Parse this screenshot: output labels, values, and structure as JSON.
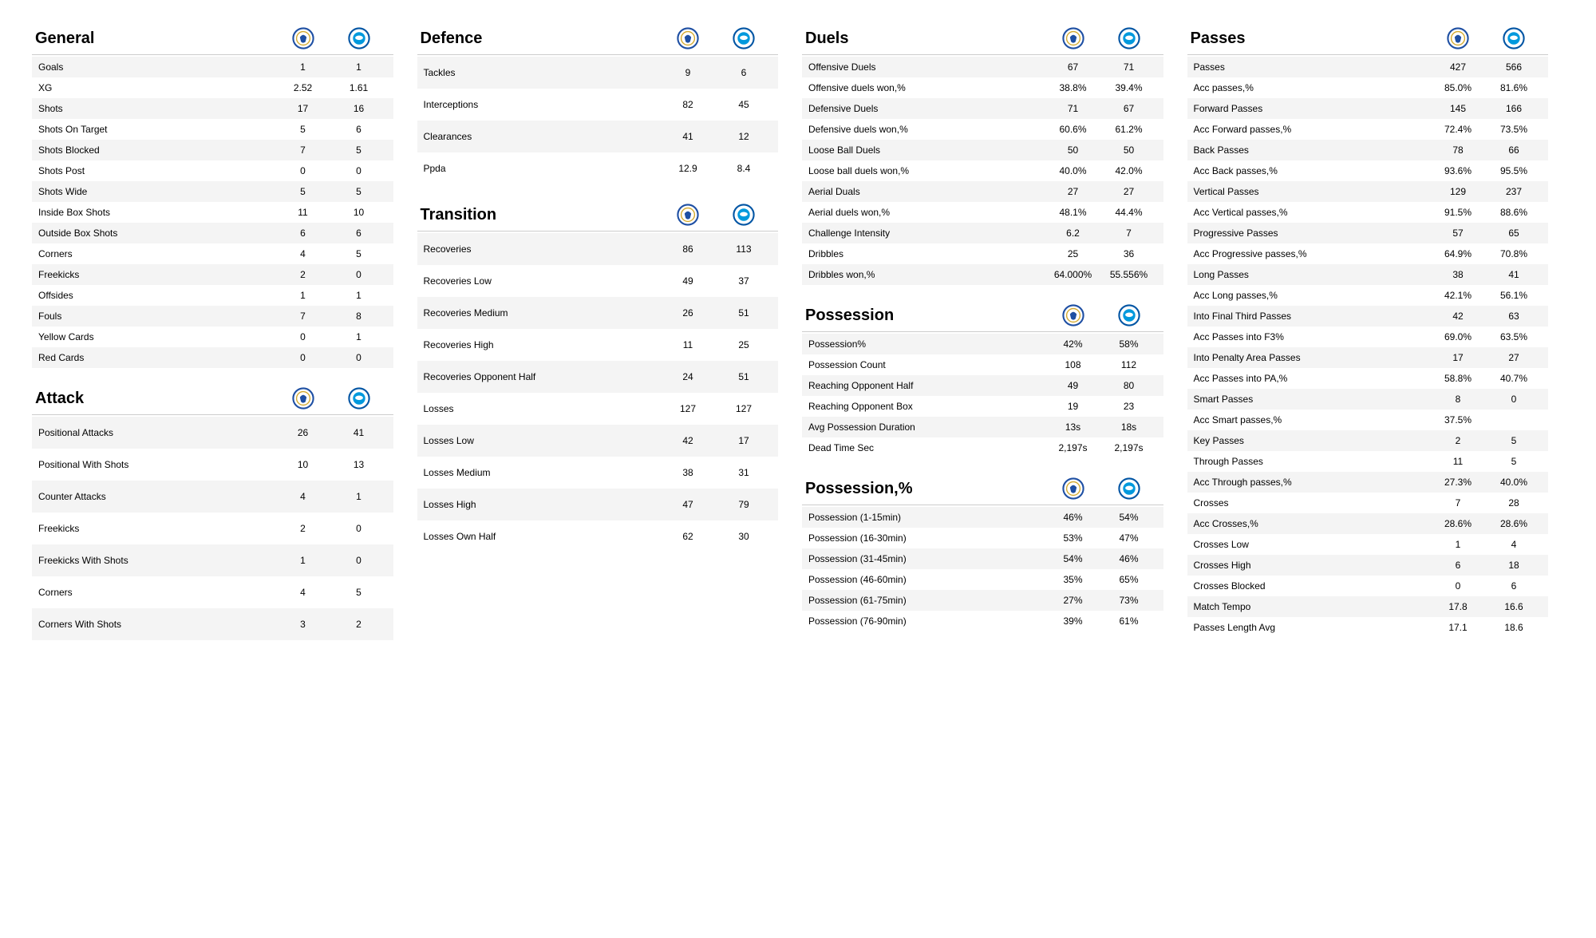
{
  "colors": {
    "row_alt": "#f4f4f4",
    "text": "#000000",
    "border": "#cccccc",
    "badge_a_bg": "#ffffff",
    "badge_a_ring": "#1e4fa3",
    "badge_a_accent": "#d4a92c",
    "badge_b_bg": "#ffffff",
    "badge_b_ring": "#0055a4",
    "badge_b_fill": "#0099dd"
  },
  "teams": {
    "a_name": "leicester-badge",
    "b_name": "brighton-badge"
  },
  "sections": {
    "general": {
      "title": "General",
      "rows": [
        {
          "label": "Goals",
          "a": "1",
          "b": "1"
        },
        {
          "label": "XG",
          "a": "2.52",
          "b": "1.61"
        },
        {
          "label": "Shots",
          "a": "17",
          "b": "16"
        },
        {
          "label": "Shots On Target",
          "a": "5",
          "b": "6"
        },
        {
          "label": "Shots Blocked",
          "a": "7",
          "b": "5"
        },
        {
          "label": "Shots Post",
          "a": "0",
          "b": "0"
        },
        {
          "label": "Shots Wide",
          "a": "5",
          "b": "5"
        },
        {
          "label": "Inside Box Shots",
          "a": "11",
          "b": "10"
        },
        {
          "label": "Outside Box Shots",
          "a": "6",
          "b": "6"
        },
        {
          "label": "Corners",
          "a": "4",
          "b": "5"
        },
        {
          "label": "Freekicks",
          "a": "2",
          "b": "0"
        },
        {
          "label": "Offsides",
          "a": "1",
          "b": "1"
        },
        {
          "label": "Fouls",
          "a": "7",
          "b": "8"
        },
        {
          "label": "Yellow Cards",
          "a": "0",
          "b": "1"
        },
        {
          "label": "Red Cards",
          "a": "0",
          "b": "0"
        }
      ]
    },
    "attack": {
      "title": "Attack",
      "rows": [
        {
          "label": "Positional Attacks",
          "a": "26",
          "b": "41"
        },
        {
          "label": "Positional With Shots",
          "a": "10",
          "b": "13"
        },
        {
          "label": "Counter Attacks",
          "a": "4",
          "b": "1"
        },
        {
          "label": "Freekicks",
          "a": "2",
          "b": "0"
        },
        {
          "label": "Freekicks With Shots",
          "a": "1",
          "b": "0"
        },
        {
          "label": "Corners",
          "a": "4",
          "b": "5"
        },
        {
          "label": "Corners With Shots",
          "a": "3",
          "b": "2"
        }
      ]
    },
    "defence": {
      "title": "Defence",
      "rows": [
        {
          "label": "Tackles",
          "a": "9",
          "b": "6"
        },
        {
          "label": "Interceptions",
          "a": "82",
          "b": "45"
        },
        {
          "label": "Clearances",
          "a": "41",
          "b": "12"
        },
        {
          "label": "Ppda",
          "a": "12.9",
          "b": "8.4"
        }
      ]
    },
    "transition": {
      "title": "Transition",
      "rows": [
        {
          "label": "Recoveries",
          "a": "86",
          "b": "113"
        },
        {
          "label": "Recoveries Low",
          "a": "49",
          "b": "37"
        },
        {
          "label": "Recoveries Medium",
          "a": "26",
          "b": "51"
        },
        {
          "label": "Recoveries High",
          "a": "11",
          "b": "25"
        },
        {
          "label": "Recoveries Opponent Half",
          "a": "24",
          "b": "51"
        },
        {
          "label": "Losses",
          "a": "127",
          "b": "127"
        },
        {
          "label": "Losses Low",
          "a": "42",
          "b": "17"
        },
        {
          "label": "Losses Medium",
          "a": "38",
          "b": "31"
        },
        {
          "label": "Losses High",
          "a": "47",
          "b": "79"
        },
        {
          "label": "Losses Own Half",
          "a": "62",
          "b": "30"
        }
      ]
    },
    "duels": {
      "title": "Duels",
      "rows": [
        {
          "label": "Offensive Duels",
          "a": "67",
          "b": "71"
        },
        {
          "label": "Offensive duels won,%",
          "a": "38.8%",
          "b": "39.4%"
        },
        {
          "label": "Defensive Duels",
          "a": "71",
          "b": "67"
        },
        {
          "label": "Defensive duels won,%",
          "a": "60.6%",
          "b": "61.2%"
        },
        {
          "label": "Loose Ball Duels",
          "a": "50",
          "b": "50"
        },
        {
          "label": "Loose ball duels won,%",
          "a": "40.0%",
          "b": "42.0%"
        },
        {
          "label": "Aerial Duals",
          "a": "27",
          "b": "27"
        },
        {
          "label": "Aerial duels won,%",
          "a": "48.1%",
          "b": "44.4%"
        },
        {
          "label": "Challenge Intensity",
          "a": "6.2",
          "b": "7"
        },
        {
          "label": "Dribbles",
          "a": "25",
          "b": "36"
        },
        {
          "label": "Dribbles won,%",
          "a": "64.000%",
          "b": "55.556%"
        }
      ]
    },
    "possession": {
      "title": "Possession",
      "rows": [
        {
          "label": "Possession%",
          "a": "42%",
          "b": "58%"
        },
        {
          "label": "Possession Count",
          "a": "108",
          "b": "112"
        },
        {
          "label": "Reaching Opponent Half",
          "a": "49",
          "b": "80"
        },
        {
          "label": "Reaching Opponent Box",
          "a": "19",
          "b": "23"
        },
        {
          "label": "Avg Possession Duration",
          "a": "13s",
          "b": "18s"
        },
        {
          "label": "Dead Time Sec",
          "a": "2,197s",
          "b": "2,197s"
        }
      ]
    },
    "possession_pct": {
      "title": "Possession,%",
      "rows": [
        {
          "label": "Possession (1-15min)",
          "a": "46%",
          "b": "54%"
        },
        {
          "label": "Possession (16-30min)",
          "a": "53%",
          "b": "47%"
        },
        {
          "label": "Possession (31-45min)",
          "a": "54%",
          "b": "46%"
        },
        {
          "label": "Possession (46-60min)",
          "a": "35%",
          "b": "65%"
        },
        {
          "label": "Possession (61-75min)",
          "a": "27%",
          "b": "73%"
        },
        {
          "label": "Possession (76-90min)",
          "a": "39%",
          "b": "61%"
        }
      ]
    },
    "passes": {
      "title": "Passes",
      "rows": [
        {
          "label": "Passes",
          "a": "427",
          "b": "566"
        },
        {
          "label": "Acc passes,%",
          "a": "85.0%",
          "b": "81.6%"
        },
        {
          "label": "Forward Passes",
          "a": "145",
          "b": "166"
        },
        {
          "label": "Acc Forward passes,%",
          "a": "72.4%",
          "b": "73.5%"
        },
        {
          "label": "Back Passes",
          "a": "78",
          "b": "66"
        },
        {
          "label": "Acc Back passes,%",
          "a": "93.6%",
          "b": "95.5%"
        },
        {
          "label": "Vertical Passes",
          "a": "129",
          "b": "237"
        },
        {
          "label": "Acc Vertical passes,%",
          "a": "91.5%",
          "b": "88.6%"
        },
        {
          "label": "Progressive Passes",
          "a": "57",
          "b": "65"
        },
        {
          "label": "Acc Progressive passes,%",
          "a": "64.9%",
          "b": "70.8%"
        },
        {
          "label": "Long Passes",
          "a": "38",
          "b": "41"
        },
        {
          "label": "Acc Long passes,%",
          "a": "42.1%",
          "b": "56.1%"
        },
        {
          "label": "Into Final Third Passes",
          "a": "42",
          "b": "63"
        },
        {
          "label": "Acc Passes into F3%",
          "a": "69.0%",
          "b": "63.5%"
        },
        {
          "label": "Into Penalty Area Passes",
          "a": "17",
          "b": "27"
        },
        {
          "label": "Acc Passes into PA,%",
          "a": "58.8%",
          "b": "40.7%"
        },
        {
          "label": "Smart Passes",
          "a": "8",
          "b": "0"
        },
        {
          "label": "Acc Smart passes,%",
          "a": "37.5%",
          "b": ""
        },
        {
          "label": "Key Passes",
          "a": "2",
          "b": "5"
        },
        {
          "label": "Through Passes",
          "a": "11",
          "b": "5"
        },
        {
          "label": "Acc Through passes,%",
          "a": "27.3%",
          "b": "40.0%"
        },
        {
          "label": "Crosses",
          "a": "7",
          "b": "28"
        },
        {
          "label": "Acc Crosses,%",
          "a": "28.6%",
          "b": "28.6%"
        },
        {
          "label": "Crosses Low",
          "a": "1",
          "b": "4"
        },
        {
          "label": "Crosses High",
          "a": "6",
          "b": "18"
        },
        {
          "label": "Crosses Blocked",
          "a": "0",
          "b": "6"
        },
        {
          "label": "Match Tempo",
          "a": "17.8",
          "b": "16.6"
        },
        {
          "label": "Passes Length Avg",
          "a": "17.1",
          "b": "18.6"
        }
      ]
    }
  },
  "layout": {
    "columns": [
      [
        "general",
        "attack"
      ],
      [
        "defence",
        "transition"
      ],
      [
        "duels",
        "possession",
        "possession_pct"
      ],
      [
        "passes"
      ]
    ],
    "tall_sections": [
      "attack",
      "defence",
      "transition"
    ],
    "compact_sections": [
      "duels",
      "possession",
      "possession_pct",
      "passes",
      "general"
    ]
  }
}
